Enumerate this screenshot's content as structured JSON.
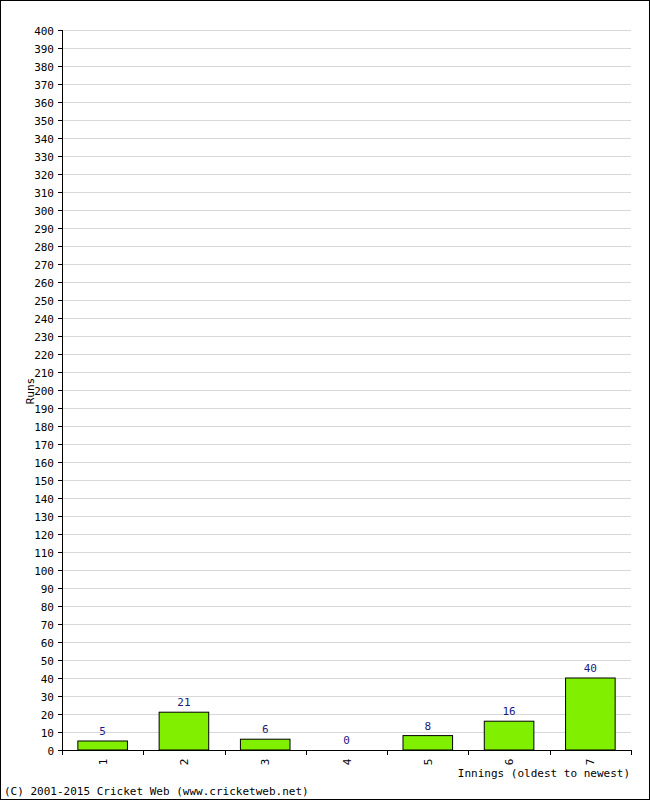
{
  "chart_data": {
    "type": "bar",
    "categories": [
      "1",
      "2",
      "3",
      "4",
      "5",
      "6",
      "7"
    ],
    "values": [
      5,
      21,
      6,
      0,
      8,
      16,
      40
    ],
    "color": "#80f000",
    "x_label": "Innings (oldest to newest)",
    "y_label": "Runs",
    "annotations": [
      "(C) 2001-2015 Cricket Web (www.cricketweb.net)"
    ],
    "ylim": [
      0,
      400
    ],
    "yticks": [
      0,
      10,
      20,
      30,
      40,
      50,
      60,
      70,
      80,
      90,
      100,
      110,
      120,
      130,
      140,
      150,
      160,
      170,
      180,
      190,
      200,
      210,
      220,
      230,
      240,
      250,
      260,
      270,
      280,
      290,
      300,
      310,
      320,
      330,
      340,
      350,
      360,
      370,
      380,
      390,
      400
    ],
    "grid": true,
    "data_labels": true
  }
}
